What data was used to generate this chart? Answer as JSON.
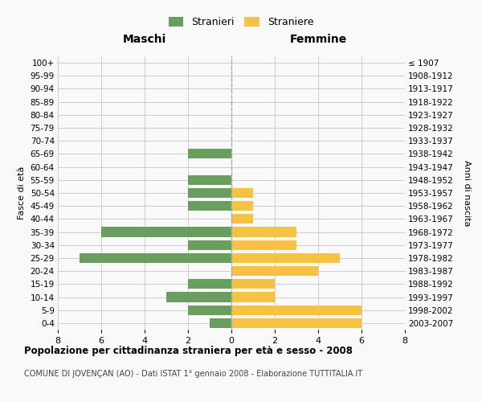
{
  "age_groups": [
    "0-4",
    "5-9",
    "10-14",
    "15-19",
    "20-24",
    "25-29",
    "30-34",
    "35-39",
    "40-44",
    "45-49",
    "50-54",
    "55-59",
    "60-64",
    "65-69",
    "70-74",
    "75-79",
    "80-84",
    "85-89",
    "90-94",
    "95-99",
    "100+"
  ],
  "birth_years": [
    "2003-2007",
    "1998-2002",
    "1993-1997",
    "1988-1992",
    "1983-1987",
    "1978-1982",
    "1973-1977",
    "1968-1972",
    "1963-1967",
    "1958-1962",
    "1953-1957",
    "1948-1952",
    "1943-1947",
    "1938-1942",
    "1933-1937",
    "1928-1932",
    "1923-1927",
    "1918-1922",
    "1913-1917",
    "1908-1912",
    "≤ 1907"
  ],
  "males": [
    1,
    2,
    3,
    2,
    0,
    7,
    2,
    6,
    0,
    2,
    2,
    2,
    0,
    2,
    0,
    0,
    0,
    0,
    0,
    0,
    0
  ],
  "females": [
    6,
    6,
    2,
    2,
    4,
    5,
    3,
    3,
    1,
    1,
    1,
    0,
    0,
    0,
    0,
    0,
    0,
    0,
    0,
    0,
    0
  ],
  "male_color": "#6a9e5e",
  "female_color": "#f5c242",
  "background_color": "#f9f9f9",
  "grid_color": "#cccccc",
  "title": "Popolazione per cittadinanza straniera per età e sesso - 2008",
  "subtitle": "COMUNE DI JOVENÇAN (AO) - Dati ISTAT 1° gennaio 2008 - Elaborazione TUTTITALIA.IT",
  "xlabel_maschi": "Maschi",
  "xlabel_femmine": "Femmine",
  "ylabel_left": "Fasce di età",
  "ylabel_right": "Anni di nascita",
  "xlim": 8,
  "legend_stranieri": "Stranieri",
  "legend_straniere": "Straniere"
}
